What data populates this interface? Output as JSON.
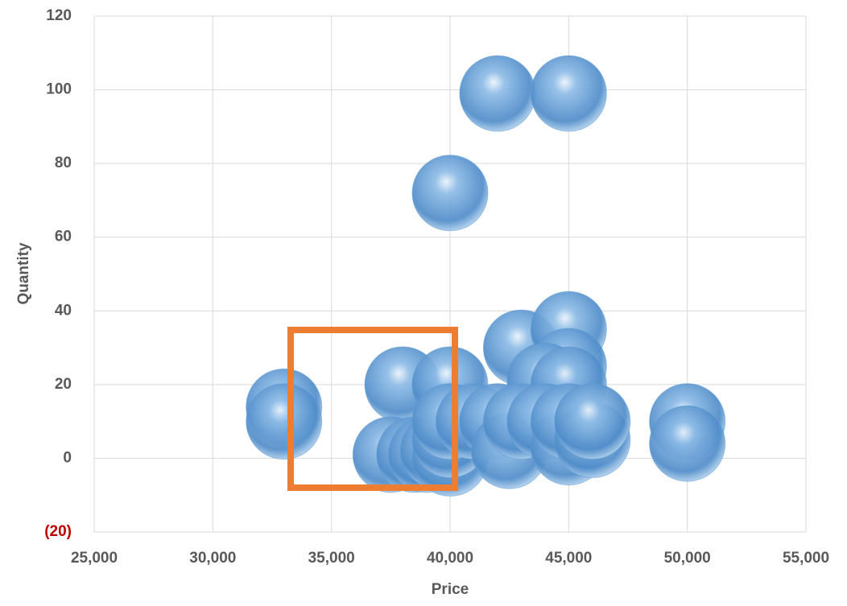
{
  "chart_data": {
    "type": "bubble",
    "x_label": "Price",
    "y_label": "Quantity",
    "x": [
      33000,
      33000,
      38000,
      40000,
      42000,
      45000,
      40000,
      43000,
      45000,
      45000,
      44000,
      45000,
      50000,
      50000,
      37500,
      38500,
      39000,
      39500,
      40000,
      40000,
      40000,
      41000,
      42000,
      42500,
      43000,
      44000,
      45000,
      45000,
      46000,
      46000
    ],
    "y": [
      14,
      10,
      20,
      20,
      99,
      99,
      72,
      30,
      35,
      25,
      21,
      20,
      10,
      4,
      1,
      1,
      1,
      2,
      0,
      5,
      10,
      10,
      10,
      2,
      10,
      10,
      3,
      10,
      5,
      10
    ],
    "sizes": [
      1,
      1,
      1,
      1,
      1,
      1,
      1,
      1,
      1,
      1,
      1,
      1,
      1,
      1,
      1,
      1,
      1,
      1,
      1,
      1,
      1,
      1,
      1,
      1,
      1,
      1,
      1,
      1,
      1,
      1
    ],
    "color": "#5b9bd5",
    "xlim": [
      25000,
      55000
    ],
    "xticks": [
      {
        "value": 25000,
        "label": "25,000"
      },
      {
        "value": 30000,
        "label": "30,000"
      },
      {
        "value": 35000,
        "label": "35,000"
      },
      {
        "value": 40000,
        "label": "40,000"
      },
      {
        "value": 45000,
        "label": "45,000"
      },
      {
        "value": 50000,
        "label": "50,000"
      },
      {
        "value": 55000,
        "label": "55,000"
      }
    ],
    "ylim": [
      -20,
      120
    ],
    "yticks": [
      {
        "value": -20,
        "label": "(20)"
      },
      0,
      20,
      40,
      60,
      80,
      100,
      120
    ],
    "negative_tick_color": "#c00000",
    "grid": true
  }
}
